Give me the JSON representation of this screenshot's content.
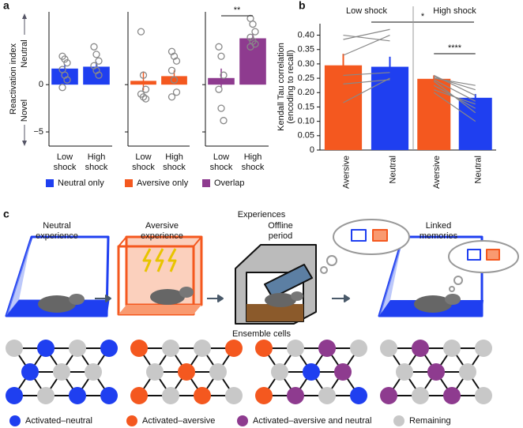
{
  "panels": [
    "a",
    "b",
    "c"
  ],
  "chart_data": [
    {
      "type": "bar",
      "ylabel": "Reactivation index",
      "ylabel_up": "Neutral",
      "ylabel_down": "Novel",
      "categories": [
        [
          "Low",
          "shock"
        ],
        [
          "High",
          "shock"
        ]
      ],
      "name": "Neutral only",
      "color": "#1f3ff0",
      "values": [
        1.7,
        1.9
      ],
      "errors": [
        0.45,
        0.5
      ],
      "points": [
        [
          3.0,
          2.7,
          2.3,
          1.6,
          1.0,
          0.5,
          -0.3
        ],
        [
          4.0,
          3.2,
          2.5,
          2.0,
          1.5,
          1.0
        ]
      ],
      "ylim": [
        -6.5,
        7.7
      ],
      "yticks": [
        0,
        {
          "value": -5,
          "label": "−5"
        }
      ]
    },
    {
      "type": "bar",
      "categories": [
        [
          "Low",
          "shock"
        ],
        [
          "High",
          "shock"
        ]
      ],
      "name": "Aversive only",
      "color": "#f4581f",
      "values": [
        0.4,
        0.9
      ],
      "errors": [
        1.0,
        0.6
      ],
      "points": [
        [
          5.6,
          1.0,
          -0.5,
          -1.0,
          -1.3,
          -1.5
        ],
        [
          3.5,
          3.0,
          2.5,
          1.5,
          0.5,
          -0.8,
          -1.3
        ]
      ],
      "ylim": [
        -6.5,
        7.7
      ]
    },
    {
      "type": "bar",
      "categories": [
        [
          "Low",
          "shock"
        ],
        [
          "High",
          "shock"
        ]
      ],
      "name": "Overlap",
      "color": "#8e3b8f",
      "values": [
        0.7,
        4.9
      ],
      "errors": [
        1.0,
        0.5
      ],
      "points": [
        [
          4.0,
          3.0,
          1.0,
          -0.5,
          -2.5,
          -3.8
        ],
        [
          7.0,
          6.4,
          5.6,
          5.0,
          4.6,
          4.3,
          4.0
        ]
      ],
      "ylim": [
        -6.5,
        7.7
      ],
      "annotation": "**"
    },
    {
      "type": "pairedbar",
      "title": "Low shock",
      "ylabel": [
        "Kendall Tau correlation",
        "(encoding to recall)"
      ],
      "categories": [
        "Aversive",
        "Neutral"
      ],
      "colors": [
        "#f4581f",
        "#1f3ff0"
      ],
      "values": [
        0.295,
        0.29
      ],
      "errors": [
        0.04,
        0.035
      ],
      "individual": [
        [
          0.4,
          0.38
        ],
        [
          0.385,
          0.42
        ],
        [
          0.33,
          0.4
        ],
        [
          0.26,
          0.27
        ],
        [
          0.23,
          0.245
        ],
        [
          0.165,
          0.25
        ]
      ],
      "ylim": [
        0,
        0.44
      ],
      "yticks": [
        0,
        0.05,
        {
          "value": 0.1,
          "label": "0.10"
        },
        0.15,
        {
          "value": 0.2,
          "label": "0.20"
        },
        0.25,
        {
          "value": 0.3,
          "label": "0.30"
        },
        0.35,
        {
          "value": 0.4,
          "label": "0.40"
        }
      ],
      "annotation": "*"
    },
    {
      "type": "pairedbar",
      "title": "High shock",
      "categories": [
        "Aversive",
        "Neutral"
      ],
      "colors": [
        "#f4581f",
        "#1f3ff0"
      ],
      "values": [
        0.248,
        0.182
      ],
      "errors": [
        0.012,
        0.013
      ],
      "individual": [
        [
          0.25,
          0.225
        ],
        [
          0.255,
          0.21
        ],
        [
          0.26,
          0.19
        ],
        [
          0.245,
          0.17
        ],
        [
          0.24,
          0.13
        ],
        [
          0.225,
          0.145
        ],
        [
          0.21,
          0.16
        ],
        [
          0.2,
          0.1
        ]
      ],
      "ylim": [
        0,
        0.44
      ],
      "annotation": "****"
    }
  ],
  "experiences_title": "Experiences",
  "stages": [
    [
      "Neutral",
      "experience"
    ],
    [
      "Aversive",
      "experience"
    ],
    [
      "Offline",
      "period"
    ],
    [
      "Linked",
      "memories"
    ]
  ],
  "ensembles_title": "Ensemble cells",
  "legend": [
    {
      "label": "Activated–neutral",
      "color": "#1f3ff0"
    },
    {
      "label": "Activated–aversive",
      "color": "#f4581f"
    },
    {
      "label": "Activated–aversive and neutral",
      "color": "#8e3b8f"
    },
    {
      "label": "Remaining",
      "color": "#c8c8c8"
    }
  ]
}
